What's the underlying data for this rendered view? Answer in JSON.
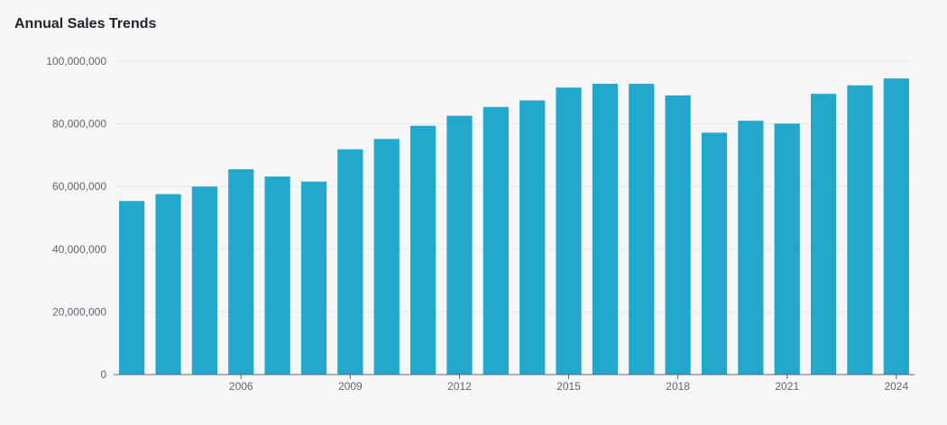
{
  "colors": {
    "bar": "#22a8cd",
    "grid": "#e4e7ef",
    "axis": "#5f6670",
    "text": "#1f2328",
    "background": "#f7f7f8"
  },
  "chart_data": {
    "type": "bar",
    "title": "Annual Sales Trends",
    "xlabel": "",
    "ylabel": "",
    "categories": [
      "2003",
      "2004",
      "2005",
      "2006",
      "2007",
      "2008",
      "2009",
      "2010",
      "2011",
      "2012",
      "2013",
      "2014",
      "2015",
      "2016",
      "2017",
      "2018",
      "2019",
      "2020",
      "2021",
      "2022",
      "2023",
      "2024"
    ],
    "values": [
      55400000,
      57600000,
      60000000,
      65500000,
      63200000,
      61600000,
      71900000,
      75200000,
      79400000,
      82600000,
      85400000,
      87500000,
      91600000,
      92800000,
      92800000,
      89100000,
      77200000,
      81000000,
      80100000,
      89600000,
      92300000,
      94500000
    ],
    "x_tick_labels": [
      "2006",
      "2009",
      "2012",
      "2015",
      "2018",
      "2021",
      "2024"
    ],
    "y_ticks": [
      0,
      20000000,
      40000000,
      60000000,
      80000000,
      100000000
    ],
    "y_tick_labels": [
      "0",
      "20,000,000",
      "40,000,000",
      "60,000,000",
      "80,000,000",
      "100,000,000"
    ],
    "ylim": [
      0,
      100000000
    ],
    "grid": true,
    "legend": "none"
  }
}
